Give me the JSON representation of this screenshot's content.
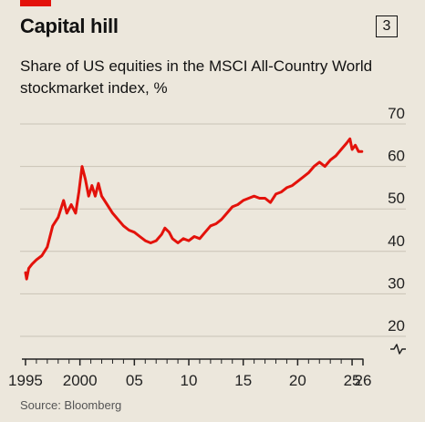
{
  "header": {
    "title": "Capital hill",
    "badge": "3"
  },
  "chart_data": {
    "type": "line",
    "title": "Capital hill",
    "subtitle": "Share of US equities in the MSCI All-Country World stockmarket index, %",
    "source": "Source: Bloomberg",
    "xlabel": "",
    "ylabel": "",
    "xlim": [
      1994.5,
      2026
    ],
    "ylim": [
      20,
      70
    ],
    "y_ticks": [
      20,
      30,
      40,
      50,
      60,
      70
    ],
    "x_ticks": [
      {
        "value": 1995,
        "label": "1995"
      },
      {
        "value": 2000,
        "label": "2000"
      },
      {
        "value": 2005,
        "label": "05"
      },
      {
        "value": 2010,
        "label": "10"
      },
      {
        "value": 2015,
        "label": "15"
      },
      {
        "value": 2020,
        "label": "20"
      },
      {
        "value": 2025,
        "label": "25"
      },
      {
        "value": 2026,
        "label": "26"
      }
    ],
    "y_axis_break": true,
    "grid": true,
    "line_color": "#e3120b",
    "series": [
      {
        "values": [
          [
            1995.0,
            35.0
          ],
          [
            1995.1,
            33.5
          ],
          [
            1995.3,
            36.0
          ],
          [
            1995.6,
            37.0
          ],
          [
            1996.0,
            38.0
          ],
          [
            1996.5,
            39.0
          ],
          [
            1997.0,
            41.0
          ],
          [
            1997.5,
            46.0
          ],
          [
            1998.0,
            48.0
          ],
          [
            1998.5,
            52.0
          ],
          [
            1998.8,
            49.0
          ],
          [
            1999.2,
            51.0
          ],
          [
            1999.6,
            49.0
          ],
          [
            1999.9,
            54.0
          ],
          [
            2000.2,
            60.0
          ],
          [
            2000.5,
            57.0
          ],
          [
            2000.8,
            53.0
          ],
          [
            2001.1,
            55.5
          ],
          [
            2001.4,
            53.0
          ],
          [
            2001.7,
            56.0
          ],
          [
            2002.0,
            53.0
          ],
          [
            2002.5,
            51.0
          ],
          [
            2003.0,
            49.0
          ],
          [
            2003.5,
            47.5
          ],
          [
            2004.0,
            46.0
          ],
          [
            2004.5,
            45.0
          ],
          [
            2005.0,
            44.5
          ],
          [
            2005.5,
            43.5
          ],
          [
            2006.0,
            42.5
          ],
          [
            2006.5,
            42.0
          ],
          [
            2007.0,
            42.5
          ],
          [
            2007.5,
            44.0
          ],
          [
            2007.8,
            45.5
          ],
          [
            2008.2,
            44.5
          ],
          [
            2008.5,
            43.0
          ],
          [
            2009.0,
            42.0
          ],
          [
            2009.5,
            43.0
          ],
          [
            2010.0,
            42.5
          ],
          [
            2010.5,
            43.5
          ],
          [
            2011.0,
            43.0
          ],
          [
            2011.5,
            44.5
          ],
          [
            2012.0,
            46.0
          ],
          [
            2012.5,
            46.5
          ],
          [
            2013.0,
            47.5
          ],
          [
            2013.5,
            49.0
          ],
          [
            2014.0,
            50.5
          ],
          [
            2014.5,
            51.0
          ],
          [
            2015.0,
            52.0
          ],
          [
            2015.5,
            52.5
          ],
          [
            2016.0,
            53.0
          ],
          [
            2016.5,
            52.5
          ],
          [
            2017.0,
            52.5
          ],
          [
            2017.5,
            51.5
          ],
          [
            2018.0,
            53.5
          ],
          [
            2018.5,
            54.0
          ],
          [
            2019.0,
            55.0
          ],
          [
            2019.5,
            55.5
          ],
          [
            2020.0,
            56.5
          ],
          [
            2020.5,
            57.5
          ],
          [
            2021.0,
            58.5
          ],
          [
            2021.5,
            60.0
          ],
          [
            2022.0,
            61.0
          ],
          [
            2022.5,
            60.0
          ],
          [
            2023.0,
            61.5
          ],
          [
            2023.5,
            62.5
          ],
          [
            2024.0,
            64.0
          ],
          [
            2024.5,
            65.5
          ],
          [
            2024.8,
            66.5
          ],
          [
            2025.0,
            64.0
          ],
          [
            2025.3,
            65.0
          ],
          [
            2025.6,
            63.5
          ],
          [
            2025.9,
            63.5
          ]
        ]
      }
    ]
  }
}
